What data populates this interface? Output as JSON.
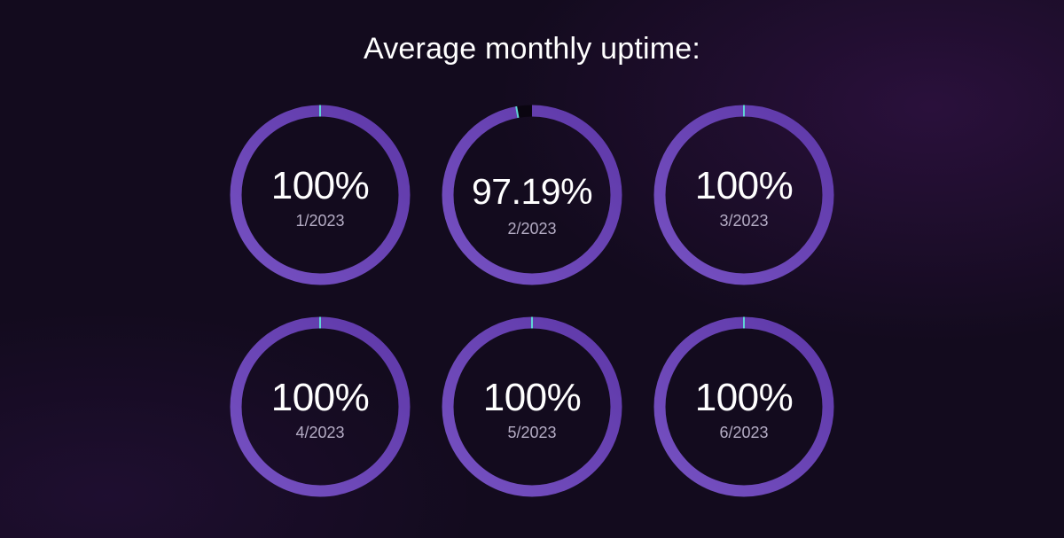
{
  "chart_data": {
    "type": "donut-grid",
    "title": "Average monthly uptime:",
    "unit": "%",
    "series": [
      {
        "value": 100,
        "value_label": "100%",
        "label": "1/2023"
      },
      {
        "value": 97.19,
        "value_label": "97.19%",
        "label": "2/2023"
      },
      {
        "value": 100,
        "value_label": "100%",
        "label": "3/2023"
      },
      {
        "value": 100,
        "value_label": "100%",
        "label": "4/2023"
      },
      {
        "value": 100,
        "value_label": "100%",
        "label": "5/2023"
      },
      {
        "value": 100,
        "value_label": "100%",
        "label": "6/2023"
      }
    ],
    "colors": {
      "ring": "#5e38a8",
      "ring_highlight": "#7651c2",
      "gap": "#0a0510",
      "start_tick": "#5fd4d4",
      "value_text": "#ffffff",
      "label_text": "#b4acc4"
    }
  }
}
